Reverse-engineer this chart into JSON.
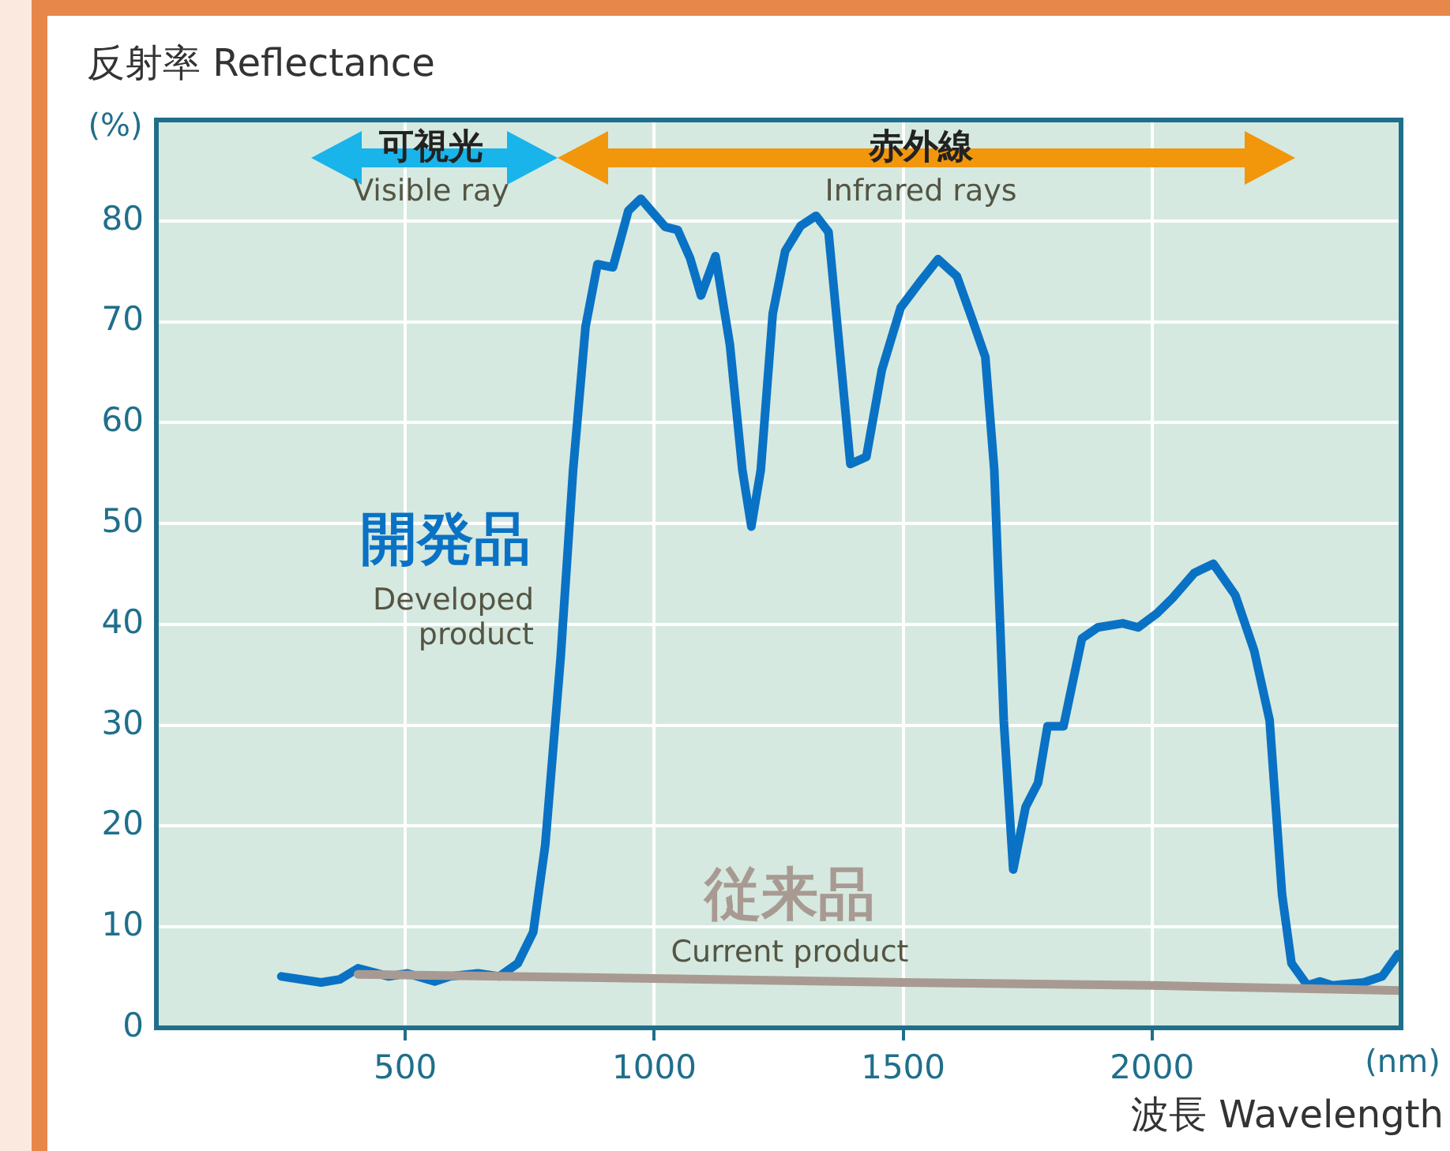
{
  "chart_data": {
    "type": "line",
    "ylabel": "反射率 Reflectance",
    "xlabel": "波長 Wavelength",
    "x": [
      251,
      331,
      368,
      405,
      467,
      504,
      559,
      590,
      646,
      689,
      726,
      757,
      781,
      812,
      837,
      862,
      886,
      917,
      948,
      973,
      1022,
      1047,
      1072,
      1094,
      1123,
      1152,
      1177,
      1195,
      1214,
      1238,
      1263,
      1294,
      1325,
      1350,
      1369,
      1394,
      1426,
      1457,
      1495,
      1533,
      1570,
      1608,
      1639,
      1665,
      1683,
      1702,
      1721,
      1746,
      1771,
      1790,
      1822,
      1859,
      1891,
      1941,
      1972,
      2010,
      2041,
      2085,
      2123,
      2167,
      2205,
      2236,
      2261,
      2280,
      2312,
      2337,
      2362,
      2425,
      2462,
      2494
    ],
    "series": [
      {
        "name": "開発品",
        "color": "#0a72c4",
        "values": [
          5.1,
          4.5,
          4.8,
          5.9,
          5.1,
          5.4,
          4.6,
          5.1,
          5.4,
          5.1,
          6.4,
          9.5,
          18.1,
          36.7,
          55.3,
          69.5,
          75.7,
          75.4,
          81,
          82.2,
          79.4,
          79.1,
          76.3,
          72.6,
          76.5,
          67.7,
          55.3,
          49.7,
          55.3,
          70.8,
          77,
          79.5,
          80.5,
          78.9,
          69,
          55.9,
          56.6,
          65.2,
          71.4,
          73.9,
          76.2,
          74.5,
          70.2,
          66.5,
          55.3,
          30.5,
          15.7,
          21.9,
          24.3,
          29.9,
          29.9,
          38.6,
          39.7,
          40.1,
          39.7,
          41.1,
          42.6,
          45.1,
          46,
          42.9,
          37.4,
          30.5,
          13.2,
          6.4,
          4.2,
          4.6,
          4.2,
          4.5,
          5.1,
          7.3
        ]
      },
      {
        "name": "従来品",
        "color": "#a89a92",
        "x": [
          405,
          1000,
          1500,
          2000,
          2500
        ],
        "values": [
          5.3,
          4.9,
          4.5,
          4.2,
          3.7
        ]
      }
    ],
    "xlim": [
      0,
      2500
    ],
    "xticks": [
      500,
      1000,
      1500,
      2000
    ],
    "ylim": [
      0,
      90
    ],
    "yticks": [
      0,
      10,
      20,
      30,
      40,
      50,
      60,
      70,
      80
    ],
    "grid": true,
    "legend": false,
    "marker": "none",
    "line_style": "solid",
    "annotations": [
      "(%)",
      "(nm)",
      "可視光",
      "Visible ray",
      "赤外線",
      "Infrared rays",
      "Developed product",
      "Current product"
    ]
  }
}
